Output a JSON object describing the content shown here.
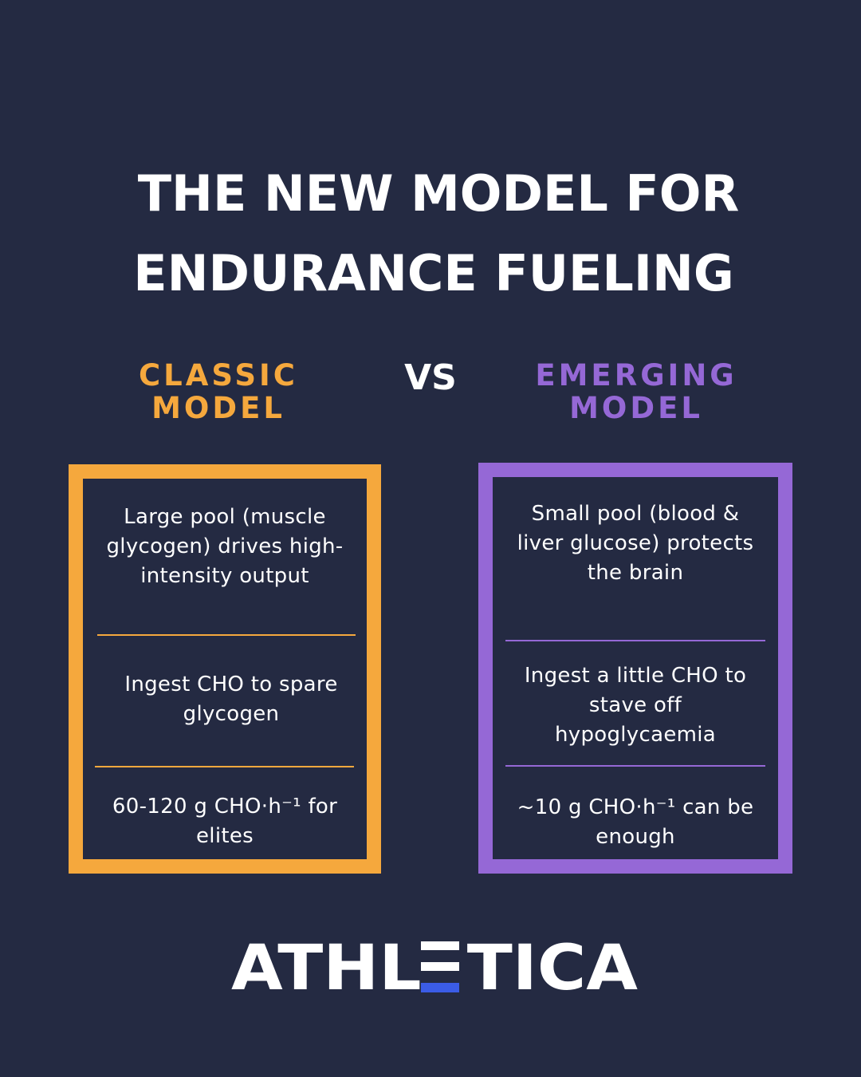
{
  "title": {
    "line1": "THE NEW MODEL FOR",
    "line2": "ENDURANCE FUELING"
  },
  "vs_label": "VS",
  "classic": {
    "heading_line1": "CLASSIC",
    "heading_line2": "MODEL",
    "accent_color": "#f5a83d",
    "points": [
      "Large pool  (muscle glycogen) drives high-intensity output",
      "Ingest CHO to spare glycogen",
      "60-120 g CHO·h⁻¹ for elites"
    ]
  },
  "emerging": {
    "heading_line1": "EMERGING",
    "heading_line2": "MODEL",
    "accent_color": "#9568d6",
    "points": [
      "Small pool (blood & liver glucose) protects the brain",
      "Ingest a little CHO to stave off hypoglycaemia",
      "~10 g CHO·h⁻¹ can be enough"
    ]
  },
  "brand": {
    "logo_text": "ATHLETICA",
    "accent_color": "#3b5ce6",
    "background_color": "#242a42"
  }
}
